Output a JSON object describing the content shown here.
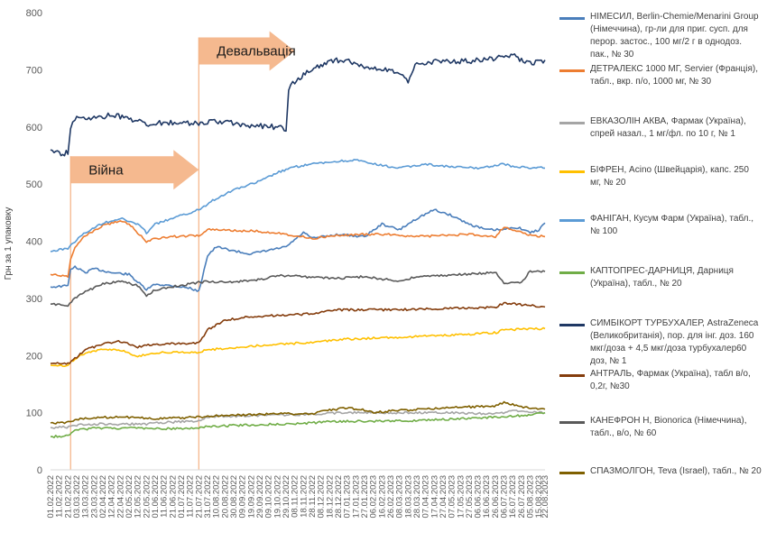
{
  "chart_data": {
    "type": "line",
    "title": "",
    "ylabel": "Грн за 1 упаковку",
    "xlabel": "",
    "ylim": [
      0,
      800
    ],
    "y_ticks": [
      0,
      100,
      200,
      300,
      400,
      500,
      600,
      700,
      800
    ],
    "grid": false,
    "legend_position": "right",
    "x_ticks": [
      "01.02.2022",
      "11.02.2022",
      "21.02.2022",
      "03.03.2022",
      "13.03.2022",
      "23.03.2022",
      "02.04.2022",
      "12.04.2022",
      "22.04.2022",
      "02.05.2022",
      "12.05.2022",
      "22.05.2022",
      "01.06.2022",
      "11.06.2022",
      "21.06.2022",
      "01.07.2022",
      "11.07.2022",
      "21.07.2022",
      "31.07.2022",
      "10.08.2022",
      "20.08.2022",
      "30.08.2022",
      "09.09.2022",
      "19.09.2022",
      "29.09.2022",
      "09.10.2022",
      "19.10.2022",
      "29.10.2022",
      "08.11.2022",
      "18.11.2022",
      "28.11.2022",
      "08.12.2022",
      "18.12.2022",
      "28.12.2022",
      "07.01.2023",
      "17.01.2023",
      "27.01.2023",
      "06.02.2023",
      "16.02.2023",
      "26.02.2023",
      "08.03.2023",
      "18.03.2023",
      "28.03.2023",
      "07.04.2023",
      "17.04.2023",
      "27.04.2023",
      "07.05.2023",
      "17.05.2023",
      "27.05.2023",
      "06.06.2023",
      "16.06.2023",
      "26.06.2023",
      "06.07.2023",
      "16.07.2023",
      "26.07.2023",
      "05.08.2023",
      "15.08.2023",
      "22.08.2023"
    ],
    "annotations": [
      {
        "text": "Війна",
        "date": "24.02.2022",
        "arrow_to": "21.07.2022",
        "y": 525,
        "color": "#f4b183"
      },
      {
        "text": "Девальвація",
        "date": "21.07.2022",
        "arrow_to": "08.11.2022",
        "y": 733,
        "color": "#f4b183"
      }
    ],
    "series": [
      {
        "name": "НІМЕСИЛ, Berlin-Chemie/Menarini Group (Німеччина), гр-ли для приг. сусп. для перор. застос., 100 мг/2 г в однодоз. пак., № 30",
        "color": "#4a7ebb",
        "points": [
          [
            "01.02.2022",
            320
          ],
          [
            "21.02.2022",
            322
          ],
          [
            "24.02.2022",
            352
          ],
          [
            "01.03.2022",
            355
          ],
          [
            "13.03.2022",
            345
          ],
          [
            "23.03.2022",
            352
          ],
          [
            "12.04.2022",
            345
          ],
          [
            "02.05.2022",
            342
          ],
          [
            "22.05.2022",
            315
          ],
          [
            "01.06.2022",
            325
          ],
          [
            "21.06.2022",
            322
          ],
          [
            "11.07.2022",
            318
          ],
          [
            "21.07.2022",
            312
          ],
          [
            "31.07.2022",
            375
          ],
          [
            "10.08.2022",
            390
          ],
          [
            "09.09.2022",
            380
          ],
          [
            "19.09.2022",
            378
          ],
          [
            "29.10.2022",
            390
          ],
          [
            "18.11.2022",
            415
          ],
          [
            "28.11.2022",
            405
          ],
          [
            "28.12.2022",
            412
          ],
          [
            "27.01.2023",
            408
          ],
          [
            "16.02.2023",
            430
          ],
          [
            "08.03.2023",
            420
          ],
          [
            "28.03.2023",
            440
          ],
          [
            "17.04.2023",
            455
          ],
          [
            "07.05.2023",
            445
          ],
          [
            "27.05.2023",
            430
          ],
          [
            "16.06.2023",
            420
          ],
          [
            "06.07.2023",
            420
          ],
          [
            "16.07.2023",
            425
          ],
          [
            "26.07.2023",
            422
          ],
          [
            "05.08.2023",
            415
          ],
          [
            "15.08.2023",
            420
          ],
          [
            "22.08.2023",
            432
          ]
        ]
      },
      {
        "name": "ДЕТРАЛЕКС 1000 МГ, Servier (Франція), табл., вкр. п/о, 1000 мг, № 30",
        "color": "#ed7d31",
        "points": [
          [
            "01.02.2022",
            342
          ],
          [
            "21.02.2022",
            338
          ],
          [
            "24.02.2022",
            370
          ],
          [
            "01.03.2022",
            390
          ],
          [
            "13.03.2022",
            410
          ],
          [
            "02.04.2022",
            428
          ],
          [
            "22.04.2022",
            435
          ],
          [
            "02.05.2022",
            430
          ],
          [
            "12.05.2022",
            415
          ],
          [
            "22.05.2022",
            400
          ],
          [
            "01.06.2022",
            405
          ],
          [
            "21.06.2022",
            408
          ],
          [
            "21.07.2022",
            410
          ],
          [
            "31.07.2022",
            420
          ],
          [
            "19.09.2022",
            418
          ],
          [
            "19.10.2022",
            415
          ],
          [
            "28.11.2022",
            405
          ],
          [
            "28.12.2022",
            410
          ],
          [
            "27.01.2023",
            412
          ],
          [
            "26.02.2023",
            412
          ],
          [
            "28.03.2023",
            408
          ],
          [
            "27.04.2023",
            410
          ],
          [
            "27.05.2023",
            412
          ],
          [
            "26.06.2023",
            408
          ],
          [
            "06.07.2023",
            425
          ],
          [
            "16.07.2023",
            420
          ],
          [
            "05.08.2023",
            410
          ],
          [
            "22.08.2023",
            408
          ]
        ]
      },
      {
        "name": "ЕВКАЗОЛІН АКВА, Фармак (Україна), спрей назал., 1 мг/фл. по 10 г, № 1",
        "color": "#a5a5a5",
        "points": [
          [
            "01.02.2022",
            74
          ],
          [
            "24.02.2022",
            75
          ],
          [
            "03.03.2022",
            78
          ],
          [
            "13.03.2022",
            80
          ],
          [
            "22.05.2022",
            80
          ],
          [
            "01.06.2022",
            82
          ],
          [
            "21.07.2022",
            86
          ],
          [
            "31.07.2022",
            93
          ],
          [
            "19.10.2022",
            96
          ],
          [
            "28.11.2022",
            97
          ],
          [
            "28.12.2022",
            100
          ],
          [
            "26.02.2023",
            100
          ],
          [
            "27.04.2023",
            100
          ],
          [
            "27.06.2023",
            98
          ],
          [
            "16.07.2023",
            103
          ],
          [
            "22.08.2023",
            100
          ]
        ]
      },
      {
        "name": "БІФРЕН, Acino (Швейцарія), капс. 250 мг, № 20",
        "color": "#ffc000",
        "points": [
          [
            "01.02.2022",
            183
          ],
          [
            "21.02.2022",
            183
          ],
          [
            "01.03.2022",
            195
          ],
          [
            "13.03.2022",
            205
          ],
          [
            "02.04.2022",
            210
          ],
          [
            "22.04.2022",
            210
          ],
          [
            "12.05.2022",
            198
          ],
          [
            "01.06.2022",
            205
          ],
          [
            "21.07.2022",
            206
          ],
          [
            "31.07.2022",
            210
          ],
          [
            "09.09.2022",
            215
          ],
          [
            "19.10.2022",
            220
          ],
          [
            "18.11.2022",
            222
          ],
          [
            "28.12.2022",
            228
          ],
          [
            "27.01.2023",
            230
          ],
          [
            "08.03.2023",
            232
          ],
          [
            "27.04.2023",
            235
          ],
          [
            "27.06.2023",
            240
          ],
          [
            "06.07.2023",
            245
          ],
          [
            "22.08.2023",
            247
          ]
        ]
      },
      {
        "name": "ФАНІГАН, Кусум Фарм (Україна), табл., № 100",
        "color": "#5b9bd5",
        "points": [
          [
            "01.02.2022",
            382
          ],
          [
            "21.02.2022",
            388
          ],
          [
            "01.03.2022",
            400
          ],
          [
            "13.03.2022",
            415
          ],
          [
            "02.04.2022",
            432
          ],
          [
            "22.04.2022",
            440
          ],
          [
            "12.05.2022",
            430
          ],
          [
            "22.05.2022",
            415
          ],
          [
            "01.06.2022",
            430
          ],
          [
            "21.06.2022",
            440
          ],
          [
            "21.07.2022",
            455
          ],
          [
            "10.08.2022",
            475
          ],
          [
            "30.08.2022",
            490
          ],
          [
            "29.09.2022",
            505
          ],
          [
            "19.10.2022",
            520
          ],
          [
            "08.11.2022",
            530
          ],
          [
            "28.11.2022",
            535
          ],
          [
            "28.12.2022",
            540
          ],
          [
            "17.01.2023",
            542
          ],
          [
            "06.02.2023",
            535
          ],
          [
            "08.03.2023",
            528
          ],
          [
            "07.04.2023",
            535
          ],
          [
            "07.05.2023",
            530
          ],
          [
            "06.06.2023",
            528
          ],
          [
            "06.07.2023",
            535
          ],
          [
            "16.07.2023",
            530
          ],
          [
            "22.08.2023",
            528
          ]
        ]
      },
      {
        "name": "КАПТОПРЕС-ДАРНИЦЯ, Дарниця (Україна), табл., № 20",
        "color": "#70ad47",
        "points": [
          [
            "01.02.2022",
            58
          ],
          [
            "21.02.2022",
            60
          ],
          [
            "03.03.2022",
            70
          ],
          [
            "23.03.2022",
            73
          ],
          [
            "02.05.2022",
            73
          ],
          [
            "01.06.2022",
            72
          ],
          [
            "21.07.2022",
            73
          ],
          [
            "31.07.2022",
            76
          ],
          [
            "09.09.2022",
            78
          ],
          [
            "19.10.2022",
            80
          ],
          [
            "28.11.2022",
            82
          ],
          [
            "28.12.2022",
            85
          ],
          [
            "26.02.2023",
            85
          ],
          [
            "27.04.2023",
            88
          ],
          [
            "27.06.2023",
            92
          ],
          [
            "26.07.2023",
            95
          ],
          [
            "22.08.2023",
            100
          ]
        ]
      },
      {
        "name": "СИМБІКОРТ ТУРБУХАЛЕР, AstraZeneca (Великобританія), пор. для інг. доз. 160 мкг/доза + 4,5 мкг/доза турбухалер60 доз, № 1",
        "color": "#1f3864",
        "points": [
          [
            "01.02.2022",
            560
          ],
          [
            "11.02.2022",
            552
          ],
          [
            "21.02.2022",
            555
          ],
          [
            "24.02.2022",
            600
          ],
          [
            "01.03.2022",
            615
          ],
          [
            "13.03.2022",
            612
          ],
          [
            "02.04.2022",
            618
          ],
          [
            "12.04.2022",
            622
          ],
          [
            "02.05.2022",
            615
          ],
          [
            "22.05.2022",
            605
          ],
          [
            "21.06.2022",
            608
          ],
          [
            "21.07.2022",
            605
          ],
          [
            "10.08.2022",
            610
          ],
          [
            "09.09.2022",
            604
          ],
          [
            "19.10.2022",
            600
          ],
          [
            "29.10.2022",
            595
          ],
          [
            "01.11.2022",
            665
          ],
          [
            "08.11.2022",
            680
          ],
          [
            "28.11.2022",
            700
          ],
          [
            "18.12.2022",
            715
          ],
          [
            "07.01.2023",
            718
          ],
          [
            "27.01.2023",
            705
          ],
          [
            "16.02.2023",
            700
          ],
          [
            "08.03.2023",
            695
          ],
          [
            "18.03.2023",
            680
          ],
          [
            "28.03.2023",
            712
          ],
          [
            "27.04.2023",
            715
          ],
          [
            "27.05.2023",
            715
          ],
          [
            "26.06.2023",
            720
          ],
          [
            "16.07.2023",
            725
          ],
          [
            "05.08.2023",
            710
          ],
          [
            "22.08.2023",
            717
          ]
        ]
      },
      {
        "name": "АНТРАЛЬ, Фармак (Україна), табл в/о, 0,2г, №30",
        "color": "#843c0c",
        "points": [
          [
            "01.02.2022",
            186
          ],
          [
            "21.02.2022",
            186
          ],
          [
            "01.03.2022",
            195
          ],
          [
            "13.03.2022",
            210
          ],
          [
            "02.04.2022",
            220
          ],
          [
            "22.04.2022",
            225
          ],
          [
            "12.05.2022",
            215
          ],
          [
            "01.06.2022",
            220
          ],
          [
            "21.07.2022",
            222
          ],
          [
            "31.07.2022",
            245
          ],
          [
            "20.08.2022",
            262
          ],
          [
            "19.09.2022",
            268
          ],
          [
            "19.10.2022",
            270
          ],
          [
            "18.11.2022",
            272
          ],
          [
            "28.12.2022",
            280
          ],
          [
            "26.02.2023",
            280
          ],
          [
            "27.04.2023",
            282
          ],
          [
            "27.06.2023",
            285
          ],
          [
            "06.07.2023",
            292
          ],
          [
            "22.08.2023",
            285
          ]
        ]
      },
      {
        "name": "КАНЕФРОН Н, Bionorica (Німеччина), табл., в/о, № 60",
        "color": "#595959",
        "points": [
          [
            "01.02.2022",
            290
          ],
          [
            "21.02.2022",
            287
          ],
          [
            "01.03.2022",
            300
          ],
          [
            "13.03.2022",
            312
          ],
          [
            "02.04.2022",
            325
          ],
          [
            "22.04.2022",
            330
          ],
          [
            "12.05.2022",
            322
          ],
          [
            "22.05.2022",
            305
          ],
          [
            "01.06.2022",
            315
          ],
          [
            "21.07.2022",
            328
          ],
          [
            "31.07.2022",
            330
          ],
          [
            "20.08.2022",
            328
          ],
          [
            "09.09.2022",
            330
          ],
          [
            "29.09.2022",
            333
          ],
          [
            "19.10.2022",
            340
          ],
          [
            "18.11.2022",
            338
          ],
          [
            "28.12.2022",
            335
          ],
          [
            "27.01.2023",
            338
          ],
          [
            "08.03.2023",
            330
          ],
          [
            "28.03.2023",
            338
          ],
          [
            "27.04.2023",
            340
          ],
          [
            "27.06.2023",
            345
          ],
          [
            "06.07.2023",
            325
          ],
          [
            "26.07.2023",
            328
          ],
          [
            "05.08.2023",
            348
          ],
          [
            "22.08.2023",
            347
          ]
        ]
      },
      {
        "name": "СПАЗМОЛГОН, Teva (Israel), табл., № 20",
        "color": "#7f6000",
        "points": [
          [
            "01.02.2022",
            82
          ],
          [
            "21.02.2022",
            83
          ],
          [
            "03.03.2022",
            88
          ],
          [
            "23.03.2022",
            92
          ],
          [
            "02.05.2022",
            92
          ],
          [
            "01.06.2022",
            90
          ],
          [
            "21.07.2022",
            92
          ],
          [
            "31.07.2022",
            94
          ],
          [
            "19.10.2022",
            98
          ],
          [
            "28.11.2022",
            98
          ],
          [
            "18.12.2022",
            105
          ],
          [
            "07.01.2023",
            108
          ],
          [
            "27.01.2023",
            105
          ],
          [
            "06.02.2023",
            100
          ],
          [
            "26.02.2023",
            103
          ],
          [
            "27.04.2023",
            108
          ],
          [
            "27.05.2023",
            110
          ],
          [
            "27.06.2023",
            112
          ],
          [
            "06.07.2023",
            118
          ],
          [
            "26.07.2023",
            110
          ],
          [
            "22.08.2023",
            106
          ]
        ]
      }
    ]
  }
}
